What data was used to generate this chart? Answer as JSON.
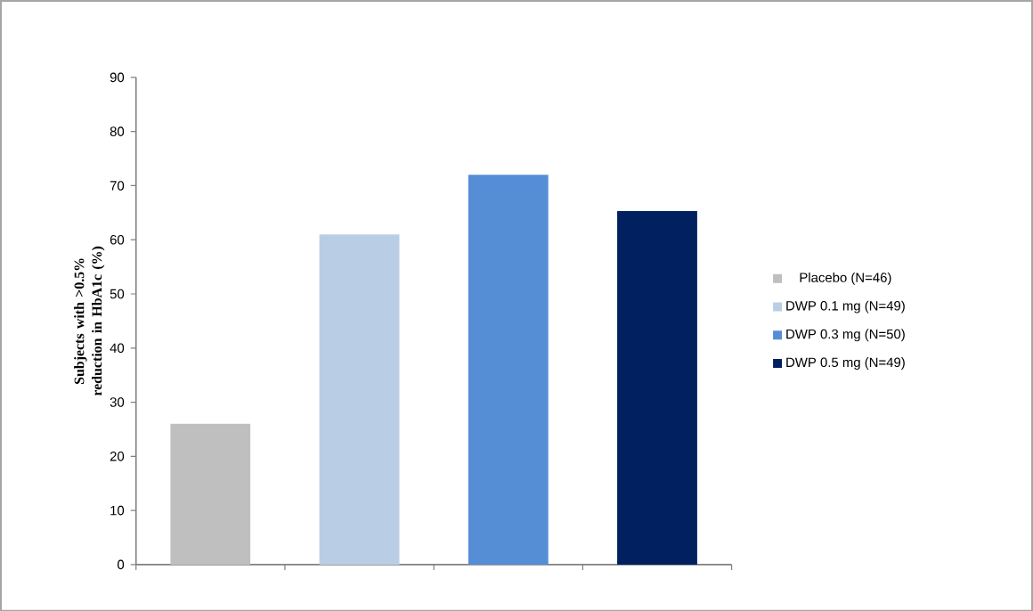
{
  "chart_data": {
    "type": "bar",
    "ylabel": "Subjects with >0.5% reduction in HbA1c (%)",
    "categories": [
      null,
      null,
      null,
      null
    ],
    "series": [
      {
        "name": "Placebo (N=46)",
        "color": "#bfbfbf",
        "values": [
          26,
          null,
          null,
          null
        ]
      },
      {
        "name": "DWP 0.1 mg (N=49)",
        "color": "#b9cde5",
        "values": [
          null,
          61,
          null,
          null
        ]
      },
      {
        "name": "DWP 0.3 mg (N=50)",
        "color": "#558ed5",
        "values": [
          null,
          null,
          72,
          null
        ]
      },
      {
        "name": "DWP 0.5 mg (N=49)",
        "color": "#002060",
        "values": [
          null,
          null,
          null,
          65.3
        ]
      }
    ],
    "ylim": [
      0,
      90
    ],
    "yticks": [
      0,
      10,
      20,
      30,
      40,
      50,
      60,
      70,
      80,
      90
    ],
    "grid": false,
    "legend": "right"
  }
}
